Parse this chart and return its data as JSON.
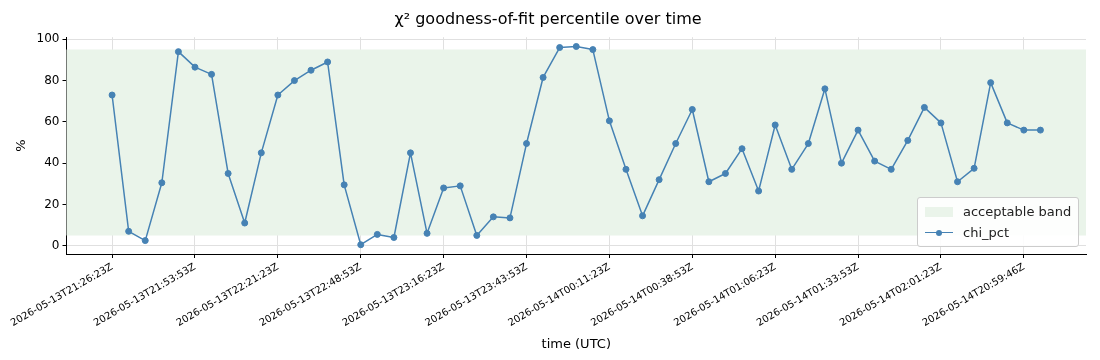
{
  "chart_data": {
    "type": "line",
    "title": "χ² goodness-of-fit percentile over time",
    "xlabel": "time (UTC)",
    "ylabel": "%",
    "categories": [
      "2026-05-13T21:26:23Z",
      null,
      null,
      null,
      null,
      "2026-05-13T21:53:53Z",
      null,
      null,
      null,
      null,
      "2026-05-13T22:21:23Z",
      null,
      null,
      null,
      null,
      "2026-05-13T22:48:53Z",
      null,
      null,
      null,
      null,
      "2026-05-13T23:16:23Z",
      null,
      null,
      null,
      null,
      "2026-05-13T23:43:53Z",
      null,
      null,
      null,
      null,
      "2026-05-14T00:11:23Z",
      null,
      null,
      null,
      null,
      "2026-05-14T00:38:53Z",
      null,
      null,
      null,
      null,
      "2026-05-14T01:06:23Z",
      null,
      null,
      null,
      null,
      "2026-05-14T01:33:53Z",
      null,
      null,
      null,
      null,
      "2026-05-14T02:01:23Z",
      null,
      null,
      null,
      null,
      "2026-05-14T20:59:46Z",
      null
    ],
    "series": [
      {
        "name": "chi_pct",
        "color": "#4682b4",
        "values": [
          73,
          7,
          2.5,
          30.5,
          94,
          86.5,
          83,
          35,
          11,
          45,
          73,
          80,
          85,
          89,
          29.5,
          0.5,
          5.5,
          4,
          45,
          6,
          28,
          29,
          5,
          14,
          13.5,
          49.5,
          81.5,
          96,
          96.5,
          95,
          60.5,
          37,
          14.5,
          32,
          49.5,
          66,
          31,
          35,
          47,
          26.5,
          58.5,
          37,
          49.5,
          76,
          40,
          56,
          41,
          37,
          51,
          67,
          59.5,
          31,
          37.5,
          79,
          59.5,
          56,
          56
        ]
      }
    ],
    "bands": [
      {
        "axis": "y",
        "from": 5,
        "to": 95,
        "label": "acceptable band",
        "color": "#eaf4ea"
      }
    ],
    "ylim": [
      -4,
      101
    ],
    "yticks": [
      0,
      20,
      40,
      60,
      80,
      100
    ],
    "grid": true,
    "legend": "bottom right",
    "marker": "circle",
    "line_style": "solid"
  }
}
